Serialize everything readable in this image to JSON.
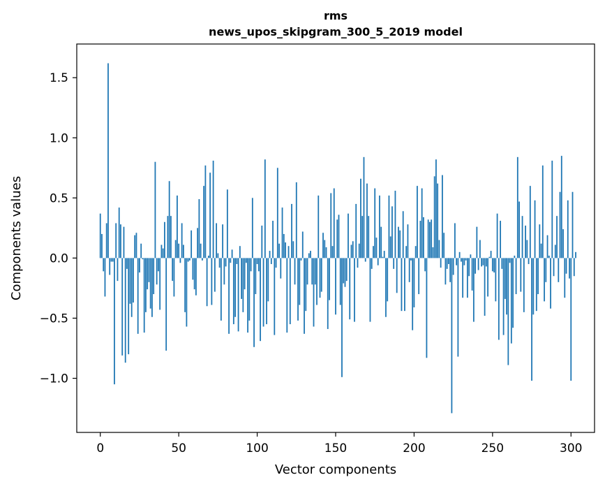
{
  "chart_data": {
    "type": "bar",
    "title": "rms",
    "subtitle": "news_upos_skipgram_300_5_2019 model",
    "xlabel": "Vector components",
    "ylabel": "Components values",
    "xlim": [
      -15,
      315
    ],
    "ylim": [
      -1.45,
      1.78
    ],
    "x_ticks": [
      0,
      50,
      100,
      150,
      200,
      250,
      300
    ],
    "x_tick_labels": [
      "0",
      "50",
      "100",
      "150",
      "200",
      "250",
      "300"
    ],
    "y_ticks": [
      -1.0,
      -0.5,
      0.0,
      0.5,
      1.0,
      1.5
    ],
    "y_tick_labels": [
      "−1.0",
      "−0.5",
      "0.0",
      "0.5",
      "1.0",
      "1.5"
    ],
    "bar_color": "#1f77b4",
    "grid": false,
    "series": [
      {
        "name": "rms",
        "x_start": 0,
        "values": [
          0.37,
          0.2,
          -0.11,
          -0.32,
          0.29,
          1.62,
          -0.14,
          -0.03,
          -0.03,
          -1.05,
          0.29,
          -0.19,
          0.42,
          0.28,
          -0.81,
          0.26,
          -0.87,
          -0.09,
          -0.8,
          -0.38,
          -0.49,
          -0.37,
          0.19,
          0.21,
          -0.63,
          -0.12,
          0.12,
          -0.01,
          -0.62,
          -0.45,
          -0.26,
          -0.2,
          -0.42,
          -0.49,
          -0.3,
          0.8,
          -0.22,
          -0.11,
          -0.43,
          0.11,
          0.08,
          0.3,
          -0.77,
          0.35,
          0.64,
          0.35,
          -0.19,
          -0.32,
          0.15,
          0.52,
          0.12,
          -0.04,
          0.29,
          0.11,
          -0.45,
          -0.57,
          -0.03,
          -0.02,
          0.23,
          -0.18,
          -0.26,
          -0.31,
          0.25,
          0.49,
          0.12,
          -0.02,
          0.6,
          0.77,
          -0.4,
          0.02,
          0.71,
          -0.39,
          0.81,
          -0.28,
          0.29,
          0.04,
          -0.08,
          -0.52,
          0.28,
          -0.22,
          -0.07,
          0.57,
          -0.63,
          -0.04,
          0.07,
          -0.55,
          -0.49,
          -0.05,
          -0.61,
          0.1,
          -0.34,
          -0.45,
          -0.26,
          -0.04,
          -0.62,
          -0.52,
          -0.11,
          0.5,
          -0.74,
          -0.3,
          -0.05,
          -0.11,
          -0.69,
          0.27,
          -0.57,
          0.82,
          -0.55,
          -0.36,
          0.06,
          -0.05,
          0.31,
          -0.64,
          -0.08,
          0.75,
          0.12,
          -0.17,
          0.42,
          0.2,
          0.13,
          -0.62,
          0.1,
          -0.55,
          0.45,
          0.14,
          -0.22,
          0.63,
          -0.52,
          -0.39,
          -0.02,
          0.22,
          -0.63,
          -0.44,
          -0.22,
          0.04,
          0.06,
          -0.22,
          -0.57,
          -0.22,
          -0.39,
          0.52,
          -0.33,
          -0.28,
          0.21,
          0.15,
          0.09,
          -0.59,
          -0.35,
          0.54,
          0.1,
          0.58,
          -0.47,
          0.32,
          0.36,
          -0.39,
          -0.99,
          -0.21,
          -0.24,
          -0.19,
          0.37,
          -0.51,
          0.11,
          0.14,
          -0.53,
          0.45,
          -0.08,
          0.12,
          0.66,
          0.35,
          0.84,
          -0.03,
          0.62,
          0.35,
          -0.53,
          -0.09,
          0.1,
          0.58,
          0.17,
          -0.06,
          0.52,
          0.26,
          0.01,
          0.06,
          -0.49,
          -0.36,
          0.52,
          0.18,
          0.43,
          -0.09,
          0.56,
          -0.29,
          0.26,
          0.23,
          -0.44,
          0.39,
          -0.44,
          0.1,
          0.28,
          -0.2,
          -0.02,
          -0.6,
          -0.41,
          0.1,
          0.6,
          -0.3,
          0.31,
          0.58,
          0.34,
          -0.11,
          -0.83,
          0.32,
          0.3,
          0.32,
          0.09,
          0.68,
          0.82,
          0.62,
          0.15,
          -0.08,
          0.69,
          0.21,
          -0.22,
          -0.09,
          -0.05,
          -0.2,
          -1.29,
          -0.14,
          0.29,
          -0.06,
          -0.82,
          0.05,
          -0.03,
          -0.33,
          -0.06,
          -0.02,
          -0.33,
          -0.15,
          0.03,
          -0.27,
          -0.53,
          -0.13,
          0.26,
          -0.1,
          0.15,
          -0.07,
          -0.06,
          -0.48,
          -0.07,
          -0.32,
          0.01,
          0.06,
          -0.11,
          -0.12,
          -0.36,
          0.37,
          -0.68,
          0.31,
          -0.09,
          -0.64,
          -0.34,
          -0.47,
          -0.89,
          -0.04,
          -0.71,
          -0.58,
          0.02,
          -0.3,
          0.84,
          0.47,
          -0.28,
          0.35,
          -0.45,
          0.27,
          0.15,
          -0.05,
          0.6,
          -1.02,
          -0.47,
          0.48,
          -0.44,
          -0.3,
          0.28,
          0.12,
          0.77,
          -0.36,
          -0.2,
          0.19,
          0.02,
          -0.42,
          0.81,
          -0.15,
          0.11,
          0.35,
          -0.2,
          0.55,
          0.85,
          0.24,
          -0.33,
          -0.13,
          0.48,
          -0.17,
          -1.02,
          0.55,
          -0.15,
          0.05
        ]
      }
    ]
  }
}
